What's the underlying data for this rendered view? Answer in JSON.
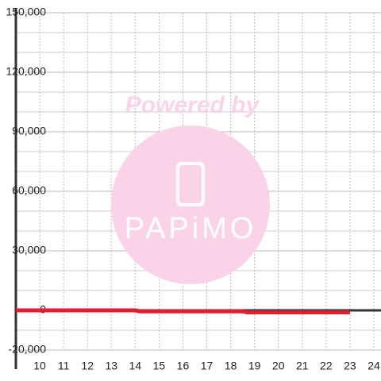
{
  "chart_data": {
    "type": "line",
    "x": [
      9,
      14,
      14.2,
      18.5,
      18.7,
      23
    ],
    "series": [
      {
        "color": "#e0202e",
        "values": [
          0,
          0,
          -500,
          -500,
          -1000,
          -1000
        ]
      }
    ],
    "xlim": [
      9,
      24.3
    ],
    "xticks": [
      10,
      11,
      12,
      13,
      14,
      15,
      16,
      17,
      18,
      19,
      20,
      21,
      22,
      23,
      24
    ],
    "ylim": [
      -20000,
      150000
    ],
    "yticks": [
      {
        "value": -20000,
        "label": "-20,000"
      },
      0,
      {
        "value": 30000,
        "label": "30,000"
      },
      {
        "value": 60000,
        "label": "60,000"
      },
      {
        "value": 90000,
        "label": "90,000"
      },
      {
        "value": 120000,
        "label": "120,000"
      },
      {
        "value": 150000,
        "label": "150,000"
      }
    ],
    "y_minor_ticks": [
      -10000,
      10000,
      20000,
      40000,
      50000,
      70000,
      80000,
      100000,
      110000,
      130000,
      140000
    ],
    "grid": true,
    "watermark": {
      "line1": "Powered by",
      "line2": "PAPiMO"
    }
  }
}
